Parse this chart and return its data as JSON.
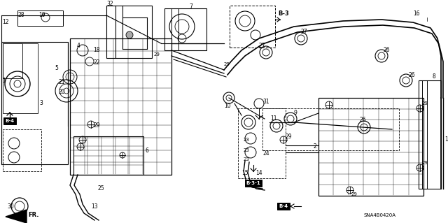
{
  "bg_color": "#ffffff",
  "line_color": "#000000",
  "sna_label": "SNA4B0420A",
  "fig_w": 6.4,
  "fig_h": 3.19,
  "dpi": 100
}
